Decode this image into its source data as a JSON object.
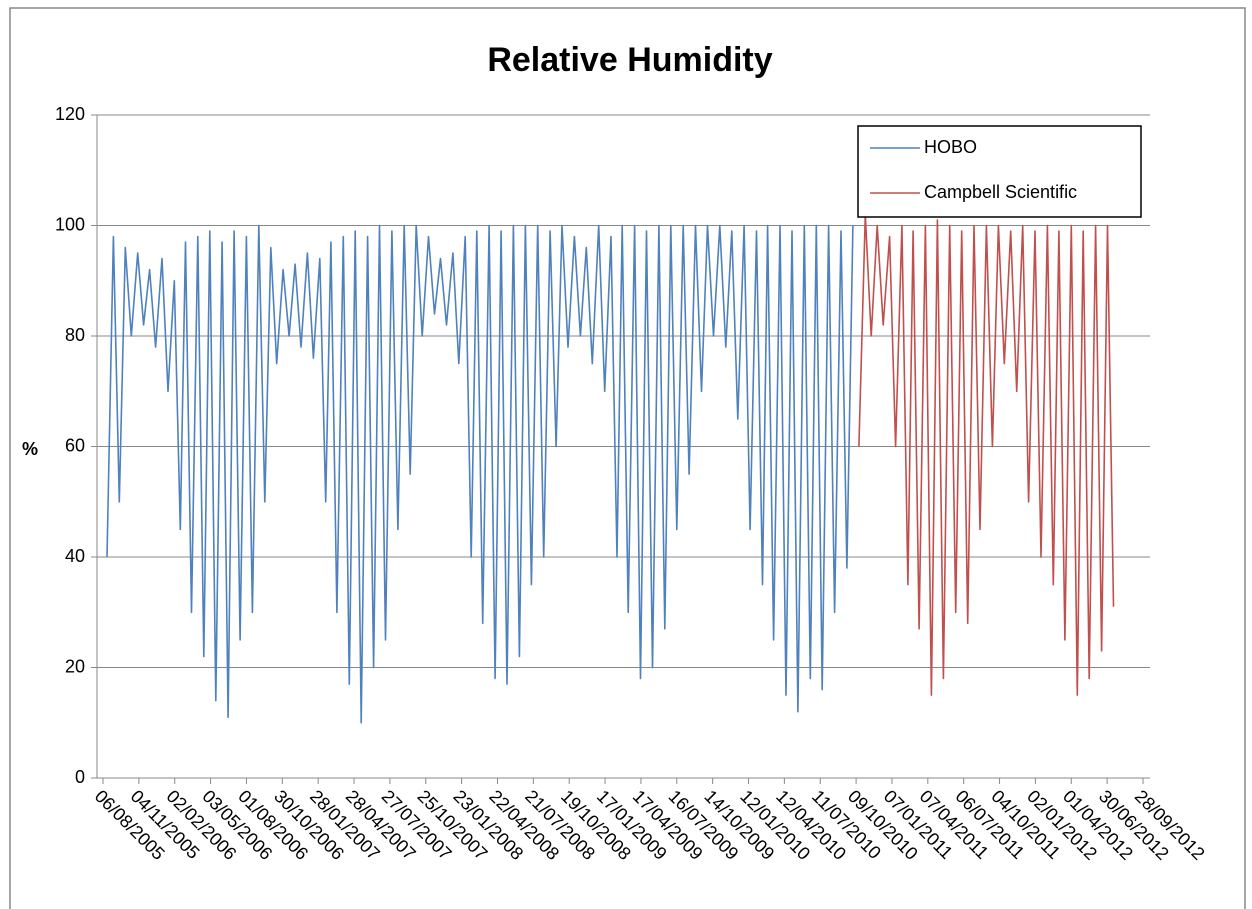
{
  "chart_data": {
    "type": "line",
    "title": "Relative Humidity",
    "y_label": "%",
    "legend": "upper right",
    "grid": true,
    "ylim": [
      0,
      120
    ],
    "yticks": [
      0,
      20,
      40,
      60,
      80,
      100,
      120
    ],
    "xlim": [
      "06/08/2005",
      "28/09/2012"
    ],
    "xticks": [
      "06/08/2005",
      "04/11/2005",
      "02/02/2006",
      "03/05/2006",
      "01/08/2006",
      "30/10/2006",
      "28/01/2007",
      "28/04/2007",
      "27/07/2007",
      "25/10/2007",
      "23/01/2008",
      "22/04/2008",
      "21/07/2008",
      "19/10/2008",
      "17/01/2009",
      "17/04/2009",
      "16/07/2009",
      "14/10/2009",
      "12/01/2010",
      "12/04/2010",
      "11/07/2010",
      "09/10/2010",
      "07/01/2011",
      "07/04/2011",
      "06/07/2011",
      "04/10/2011",
      "02/01/2012",
      "01/04/2012",
      "30/06/2012",
      "28/09/2012"
    ],
    "series": [
      {
        "name": "HOBO",
        "color": "#4f81bd",
        "x": [
          "16/08/2005",
          "01/09/2005",
          "16/09/2005",
          "01/10/2005",
          "16/10/2005",
          "01/11/2005",
          "16/11/2005",
          "01/12/2005",
          "16/12/2005",
          "01/01/2006",
          "16/01/2006",
          "01/02/2006",
          "16/02/2006",
          "01/03/2006",
          "16/03/2006",
          "01/04/2006",
          "16/04/2006",
          "01/05/2006",
          "16/05/2006",
          "01/06/2006",
          "16/06/2006",
          "01/07/2006",
          "16/07/2006",
          "01/08/2006",
          "16/08/2006",
          "01/09/2006",
          "16/09/2006",
          "01/10/2006",
          "16/10/2006",
          "01/11/2006",
          "16/11/2006",
          "01/12/2006",
          "16/12/2006",
          "01/01/2007",
          "16/01/2007",
          "01/02/2007",
          "16/02/2007",
          "01/03/2007",
          "16/03/2007",
          "01/04/2007",
          "16/04/2007",
          "01/05/2007",
          "16/05/2007",
          "01/06/2007",
          "16/06/2007",
          "01/07/2007",
          "16/07/2007",
          "01/08/2007",
          "16/08/2007",
          "01/09/2007",
          "16/09/2007",
          "01/10/2007",
          "16/10/2007",
          "01/11/2007",
          "16/11/2007",
          "01/12/2007",
          "16/12/2007",
          "01/01/2008",
          "16/01/2008",
          "01/02/2008",
          "16/02/2008",
          "01/03/2008",
          "16/03/2008",
          "01/04/2008",
          "16/04/2008",
          "01/05/2008",
          "16/05/2008",
          "01/06/2008",
          "16/06/2008",
          "01/07/2008",
          "16/07/2008",
          "01/08/2008",
          "16/08/2008",
          "01/09/2008",
          "16/09/2008",
          "01/10/2008",
          "16/10/2008",
          "01/11/2008",
          "16/11/2008",
          "01/12/2008",
          "16/12/2008",
          "01/01/2009",
          "16/01/2009",
          "01/02/2009",
          "16/02/2009",
          "01/03/2009",
          "16/03/2009",
          "01/04/2009",
          "16/04/2009",
          "01/05/2009",
          "16/05/2009",
          "01/06/2009",
          "16/06/2009",
          "01/07/2009",
          "16/07/2009",
          "01/08/2009",
          "16/08/2009",
          "01/09/2009",
          "16/09/2009",
          "01/10/2009",
          "16/10/2009",
          "01/11/2009",
          "16/11/2009",
          "01/12/2009",
          "16/12/2009",
          "01/01/2010",
          "16/01/2010",
          "01/02/2010",
          "16/02/2010",
          "01/03/2010",
          "16/03/2010",
          "01/04/2010",
          "16/04/2010",
          "01/05/2010",
          "16/05/2010",
          "01/06/2010",
          "16/06/2010",
          "01/07/2010",
          "16/07/2010",
          "01/08/2010",
          "16/08/2010",
          "01/09/2010",
          "16/09/2010",
          "01/10/2010"
        ],
        "values": [
          40,
          98,
          50,
          96,
          80,
          95,
          82,
          92,
          78,
          94,
          70,
          90,
          45,
          97,
          30,
          98,
          22,
          99,
          14,
          97,
          11,
          99,
          25,
          98,
          30,
          100,
          50,
          96,
          75,
          92,
          80,
          93,
          78,
          95,
          76,
          94,
          50,
          97,
          30,
          98,
          17,
          99,
          10,
          98,
          20,
          100,
          25,
          99,
          45,
          100,
          55,
          100,
          80,
          98,
          84,
          94,
          82,
          95,
          75,
          98,
          40,
          99,
          28,
          100,
          18,
          99,
          17,
          100,
          22,
          100,
          35,
          100,
          40,
          99,
          60,
          100,
          78,
          98,
          80,
          96,
          75,
          100,
          70,
          98,
          40,
          100,
          30,
          100,
          18,
          99,
          20,
          100,
          27,
          100,
          45,
          100,
          55,
          100,
          70,
          100,
          80,
          100,
          78,
          99,
          65,
          100,
          45,
          99,
          35,
          100,
          25,
          100,
          15,
          99,
          12,
          100,
          18,
          100,
          16,
          100,
          30,
          99,
          38,
          100
        ]
      },
      {
        "name": "Campbell Scientific",
        "color": "#c0504d",
        "x": [
          "16/10/2010",
          "01/11/2010",
          "16/11/2010",
          "01/12/2010",
          "16/12/2010",
          "01/01/2011",
          "16/01/2011",
          "01/02/2011",
          "16/02/2011",
          "01/03/2011",
          "16/03/2011",
          "01/04/2011",
          "16/04/2011",
          "01/05/2011",
          "16/05/2011",
          "01/06/2011",
          "16/06/2011",
          "01/07/2011",
          "16/07/2011",
          "01/08/2011",
          "16/08/2011",
          "01/09/2011",
          "16/09/2011",
          "01/10/2011",
          "16/10/2011",
          "01/11/2011",
          "16/11/2011",
          "01/12/2011",
          "16/12/2011",
          "01/01/2012",
          "16/01/2012",
          "01/02/2012",
          "16/02/2012",
          "01/03/2012",
          "16/03/2012",
          "01/04/2012",
          "16/04/2012",
          "01/05/2012",
          "16/05/2012",
          "01/06/2012",
          "16/06/2012",
          "01/07/2012",
          "16/07/2012"
        ],
        "values": [
          60,
          102,
          80,
          100,
          82,
          98,
          60,
          100,
          35,
          99,
          27,
          100,
          15,
          101,
          18,
          100,
          30,
          99,
          28,
          100,
          45,
          100,
          60,
          100,
          75,
          99,
          70,
          100,
          50,
          99,
          40,
          100,
          35,
          99,
          25,
          100,
          15,
          99,
          18,
          100,
          23,
          100,
          31
        ]
      }
    ]
  }
}
